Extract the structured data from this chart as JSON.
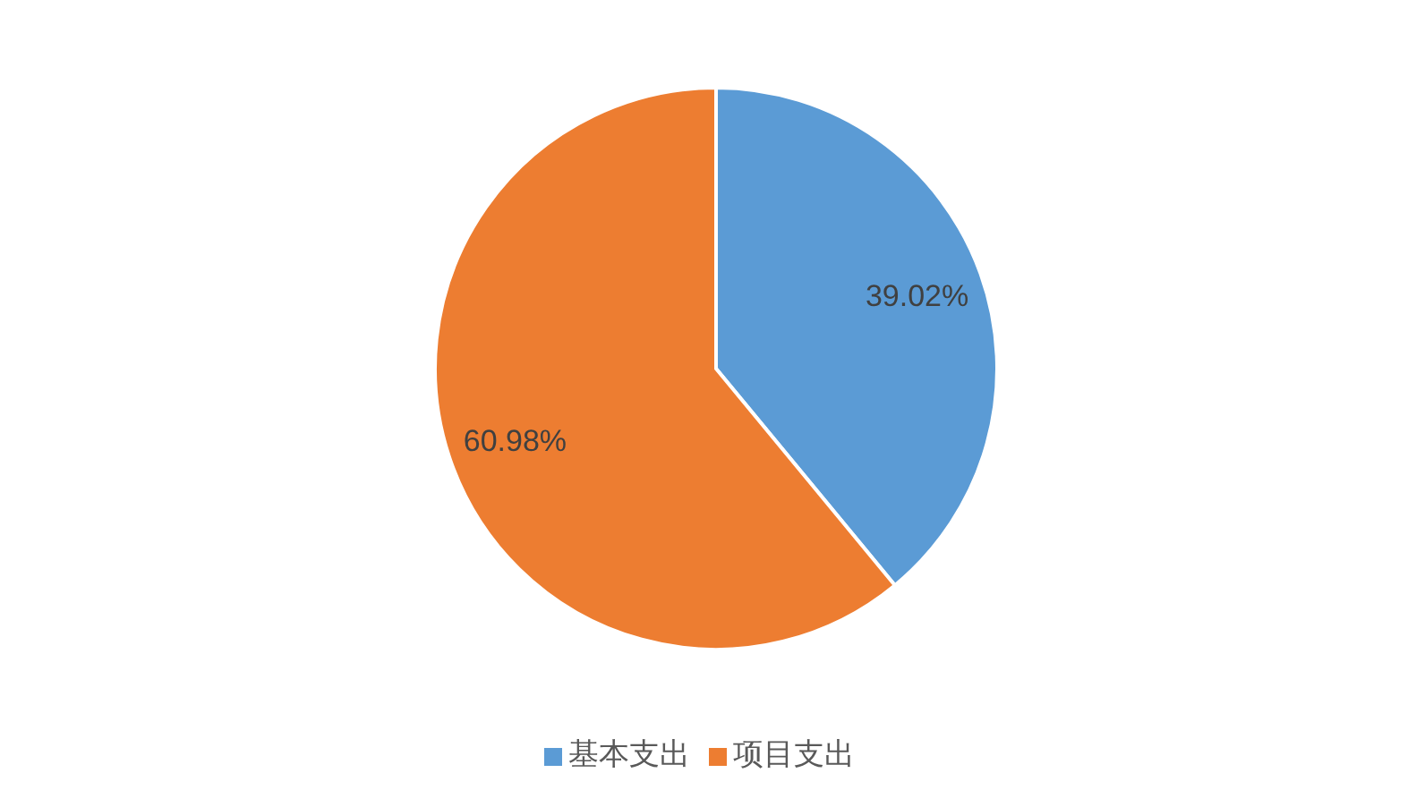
{
  "chart_data": {
    "type": "pie",
    "categories": [
      "基本支出",
      "项目支出"
    ],
    "values": [
      39.02,
      60.98
    ],
    "colors": [
      "#5b9bd5",
      "#ed7d31"
    ],
    "value_labels": [
      "39.02%",
      "60.98%"
    ],
    "legend": "bottom"
  }
}
